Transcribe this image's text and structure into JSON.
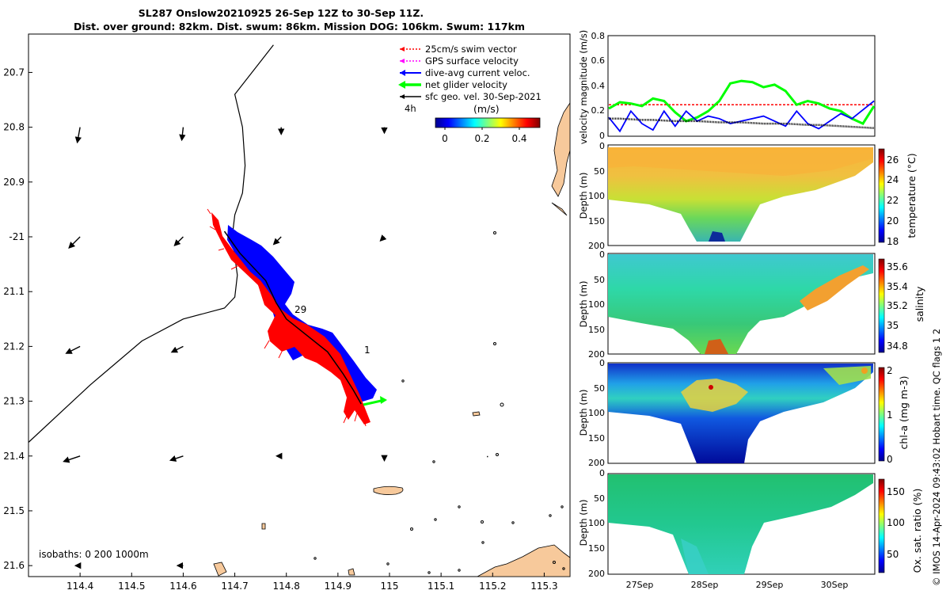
{
  "title": {
    "line1": "SL287 Onslow20210925 26-Sep 12Z to 30-Sep 11Z.",
    "line2": "Dist. over ground: 82km. Dist. swum: 86km. Mission DOG: 106km. Swum: 117km"
  },
  "credit": "© IMOS 14-Apr-2024 09:43:02 Hobart time. QC flags 1  2",
  "colors": {
    "land": "#f7c99b",
    "track": "#000000",
    "swim": "#ff0000",
    "gps": "#ff00ff",
    "dive_avg": "#0000ff",
    "net": "#00ff00",
    "geo": "#000000"
  },
  "map": {
    "isobaths_label": "isobaths: 0   200  1000m",
    "label_29": "29",
    "label_1": "1",
    "scale_label_4h": "4h",
    "colorbar": {
      "title": "(m/s)",
      "ticks": [
        "0",
        "0.2",
        "0.4"
      ]
    }
  },
  "legend": {
    "items": [
      {
        "label": "25cm/s swim vector",
        "color": "#ff0000",
        "style": "dotted"
      },
      {
        "label": "GPS surface velocity",
        "color": "#ff00ff",
        "style": "dotted"
      },
      {
        "label": "dive-avg current veloc.",
        "color": "#0000ff",
        "style": "solid"
      },
      {
        "label": "net glider velocity",
        "color": "#00ff00",
        "style": "thick"
      },
      {
        "label": "sfc geo. vel. 30-Sep-2021",
        "color": "#000000",
        "style": "solid"
      }
    ]
  },
  "chart_data": [
    {
      "type": "map",
      "xlim": [
        114.3,
        115.35
      ],
      "ylim": [
        -21.62,
        -20.63
      ],
      "x_ticks": [
        114.4,
        114.5,
        114.6,
        114.7,
        114.8,
        114.9,
        115,
        115.1,
        115.2,
        115.3
      ],
      "x_tick_labels": [
        "114.4",
        "114.5",
        "114.6",
        "114.7",
        "114.8",
        "114.9",
        "115",
        "115.1",
        "115.2",
        "115.3"
      ],
      "y_ticks": [
        -20.7,
        -20.8,
        -20.9,
        -21,
        -21.1,
        -21.2,
        -21.3,
        -21.4,
        -21.5,
        -21.6
      ],
      "y_tick_labels": [
        "20.7",
        "20.8",
        "20.9",
        "-21",
        "21.1",
        "21.2",
        "21.3",
        "21.4",
        "21.5",
        "21.6"
      ],
      "isobath_200m": [
        [
          114.3,
          -21.375
        ],
        [
          114.42,
          -21.27
        ],
        [
          114.52,
          -21.19
        ],
        [
          114.6,
          -21.15
        ],
        [
          114.68,
          -21.13
        ],
        [
          114.7,
          -21.11
        ],
        [
          114.705,
          -21.07
        ],
        [
          114.695,
          -21.0
        ],
        [
          114.7,
          -20.96
        ],
        [
          114.715,
          -20.92
        ],
        [
          114.72,
          -20.87
        ],
        [
          114.715,
          -20.8
        ],
        [
          114.7,
          -20.74
        ],
        [
          114.75,
          -20.68
        ],
        [
          114.775,
          -20.65
        ]
      ],
      "glider_track": [
        [
          114.68,
          -20.99
        ],
        [
          114.71,
          -21.03
        ],
        [
          114.74,
          -21.06
        ],
        [
          114.76,
          -21.08
        ],
        [
          114.78,
          -21.12
        ],
        [
          114.8,
          -21.15
        ],
        [
          114.84,
          -21.18
        ],
        [
          114.88,
          -21.21
        ],
        [
          114.91,
          -21.25
        ],
        [
          114.93,
          -21.28
        ],
        [
          114.945,
          -21.305
        ]
      ],
      "geo_vectors": [
        {
          "lon": 114.4,
          "lat": -20.8,
          "u": -0.02,
          "v": -0.11
        },
        {
          "lon": 114.6,
          "lat": -20.8,
          "u": -0.01,
          "v": -0.09
        },
        {
          "lon": 114.79,
          "lat": -20.8,
          "u": 0.0,
          "v": -0.04
        },
        {
          "lon": 114.99,
          "lat": -20.8,
          "u": 0.0,
          "v": -0.03
        },
        {
          "lon": 114.4,
          "lat": -21.0,
          "u": -0.08,
          "v": -0.08
        },
        {
          "lon": 114.6,
          "lat": -21.0,
          "u": -0.06,
          "v": -0.06
        },
        {
          "lon": 114.79,
          "lat": -21.0,
          "u": -0.05,
          "v": -0.05
        },
        {
          "lon": 114.99,
          "lat": -21.0,
          "u": -0.02,
          "v": -0.02
        },
        {
          "lon": 115.19,
          "lat": -21.0,
          "u": 0.0,
          "v": 0.0
        },
        {
          "lon": 114.4,
          "lat": -21.2,
          "u": -0.1,
          "v": -0.05
        },
        {
          "lon": 114.6,
          "lat": -21.2,
          "u": -0.08,
          "v": -0.04
        },
        {
          "lon": 114.99,
          "lat": -21.2,
          "u": 0.0,
          "v": 0.0
        },
        {
          "lon": 115.19,
          "lat": -21.2,
          "u": 0.0,
          "v": 0.0
        },
        {
          "lon": 114.4,
          "lat": -21.4,
          "u": -0.12,
          "v": -0.04
        },
        {
          "lon": 114.6,
          "lat": -21.4,
          "u": -0.09,
          "v": -0.03
        },
        {
          "lon": 114.79,
          "lat": -21.4,
          "u": -0.02,
          "v": 0.0
        },
        {
          "lon": 114.99,
          "lat": -21.4,
          "u": 0.0,
          "v": -0.02
        },
        {
          "lon": 115.19,
          "lat": -21.4,
          "u": 0.0,
          "v": -0.01
        },
        {
          "lon": 114.4,
          "lat": -21.6,
          "u": -0.02,
          "v": 0.0
        },
        {
          "lon": 114.6,
          "lat": -21.6,
          "u": -0.03,
          "v": 0.0
        }
      ]
    },
    {
      "type": "line",
      "ylabel": "velocity magnitude (m/s)",
      "ylim": [
        0,
        0.8
      ],
      "y_ticks": [
        "0",
        "0.2",
        "0.4",
        "0.6",
        "0.8"
      ],
      "series": [
        {
          "name": "swim",
          "color": "#ff0000",
          "values": [
            0.25,
            0.25,
            0.25,
            0.25,
            0.25,
            0.25,
            0.25,
            0.25,
            0.25,
            0.25,
            0.25,
            0.25,
            0.25,
            0.25,
            0.25,
            0.25,
            0.25,
            0.25,
            0.25,
            0.25,
            0.25,
            0.25,
            0.25,
            0.25,
            0.25
          ]
        },
        {
          "name": "net",
          "color": "#00ff00",
          "values": [
            0.22,
            0.27,
            0.26,
            0.24,
            0.3,
            0.28,
            0.19,
            0.12,
            0.15,
            0.2,
            0.28,
            0.42,
            0.44,
            0.43,
            0.39,
            0.41,
            0.36,
            0.25,
            0.28,
            0.26,
            0.22,
            0.2,
            0.14,
            0.1,
            0.24
          ]
        },
        {
          "name": "dive-avg",
          "color": "#0000ff",
          "values": [
            0.15,
            0.04,
            0.2,
            0.1,
            0.05,
            0.2,
            0.08,
            0.2,
            0.12,
            0.16,
            0.14,
            0.1,
            0.12,
            0.14,
            0.16,
            0.12,
            0.08,
            0.2,
            0.1,
            0.06,
            0.12,
            0.18,
            0.14,
            0.21,
            0.28
          ]
        },
        {
          "name": "geo",
          "color": "#000000",
          "values": [
            0.14,
            0.14,
            0.135,
            0.13,
            0.13,
            0.125,
            0.12,
            0.12,
            0.12,
            0.115,
            0.11,
            0.11,
            0.11,
            0.105,
            0.1,
            0.1,
            0.1,
            0.095,
            0.09,
            0.09,
            0.085,
            0.08,
            0.075,
            0.07,
            0.065
          ]
        }
      ]
    },
    {
      "type": "heatmap",
      "variable": "temperature",
      "ylabel": "Depth (m)",
      "ylim": [
        0,
        200
      ],
      "y_ticks": [
        "0",
        "50",
        "100",
        "150",
        "200"
      ],
      "colorbar_label": "temperature (°C)",
      "colorbar_ticks": [
        "18",
        "20",
        "22",
        "24",
        "26"
      ],
      "crange": [
        18,
        27
      ]
    },
    {
      "type": "heatmap",
      "variable": "salinity",
      "ylabel": "Depth (m)",
      "ylim": [
        0,
        200
      ],
      "y_ticks": [
        "0",
        "50",
        "100",
        "150",
        "200"
      ],
      "colorbar_label": "salinity",
      "colorbar_ticks": [
        "34.8",
        "35",
        "35.2",
        "35.4",
        "35.6"
      ],
      "crange": [
        34.7,
        35.7
      ]
    },
    {
      "type": "heatmap",
      "variable": "chlorophyll",
      "ylabel": "Depth (m)",
      "ylim": [
        0,
        200
      ],
      "y_ticks": [
        "0",
        "50",
        "100",
        "150",
        "200"
      ],
      "colorbar_label": "chl-a (mg m-3)",
      "colorbar_ticks": [
        "0",
        "1",
        "2"
      ],
      "crange": [
        0,
        2
      ]
    },
    {
      "type": "heatmap",
      "variable": "oxygen",
      "ylabel": "Depth (m)",
      "ylim": [
        0,
        200
      ],
      "y_ticks": [
        "0",
        "50",
        "100",
        "150",
        "200"
      ],
      "colorbar_label": "Ox. sat. ratio (%)",
      "colorbar_ticks": [
        "50",
        "100",
        "150"
      ],
      "crange": [
        25,
        175
      ],
      "x_tick_labels": [
        "27Sep",
        "28Sep",
        "29Sep",
        "30Sep"
      ]
    }
  ]
}
